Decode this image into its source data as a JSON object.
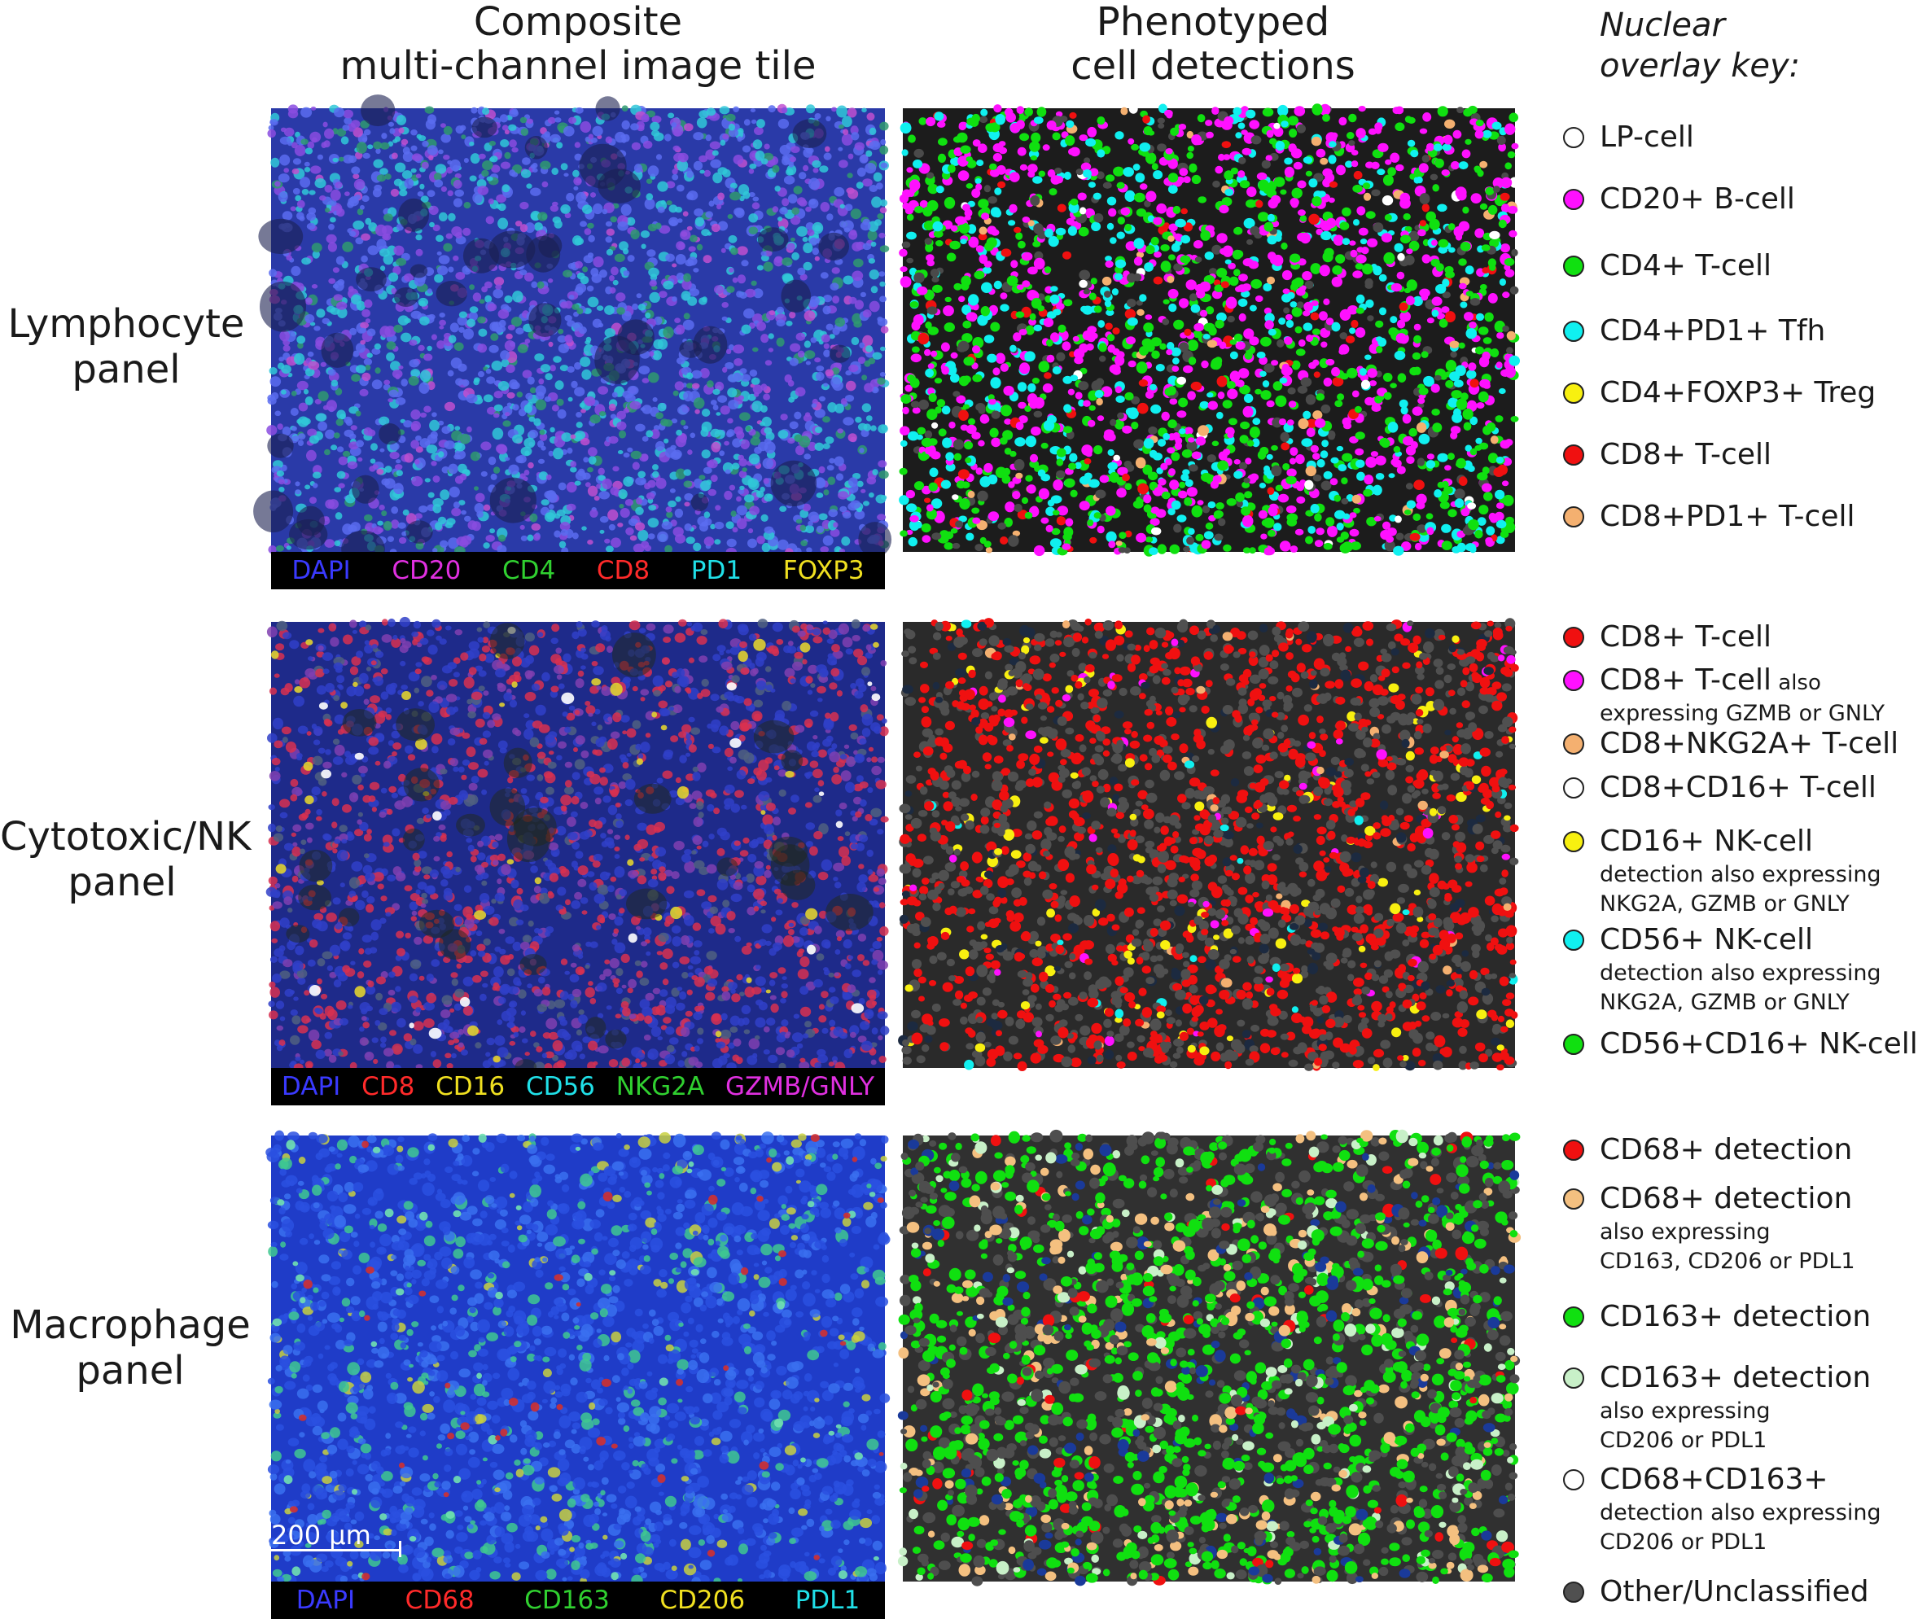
{
  "column_headers": {
    "composite": [
      "Composite",
      "multi-channel image tile"
    ],
    "phenotyped": [
      "Phenotyped",
      "cell detections"
    ],
    "key": [
      "Nuclear",
      "overlay key:"
    ]
  },
  "rows": [
    {
      "label": [
        "Lymphocyte",
        "panel"
      ],
      "channels": [
        {
          "name": "DAPI",
          "color": "#3a3aff"
        },
        {
          "name": "CD20",
          "color": "#e030e0"
        },
        {
          "name": "CD4",
          "color": "#30d030"
        },
        {
          "name": "CD8",
          "color": "#ff2a2a"
        },
        {
          "name": "PD1",
          "color": "#20e0e8"
        },
        {
          "name": "FOXP3",
          "color": "#f0e020"
        }
      ],
      "key": [
        {
          "label": "LP-cell",
          "color": "#ffffff"
        },
        {
          "label": "CD20+ B-cell",
          "color": "#ff10ff"
        },
        {
          "label": "CD4+ T-cell",
          "color": "#10e010"
        },
        {
          "label": "CD4+PD1+ Tfh",
          "color": "#10f0f0"
        },
        {
          "label": "CD4+FOXP3+ Treg",
          "color": "#f8f010"
        },
        {
          "label": "CD8+ T-cell",
          "color": "#f01010"
        },
        {
          "label": "CD8+PD1+ T-cell",
          "color": "#f4b070"
        }
      ]
    },
    {
      "label": [
        "Cytotoxic/NK",
        "panel"
      ],
      "channels": [
        {
          "name": "DAPI",
          "color": "#3a3aff"
        },
        {
          "name": "CD8",
          "color": "#ff2a2a"
        },
        {
          "name": "CD16",
          "color": "#f0e020"
        },
        {
          "name": "CD56",
          "color": "#20e0e8"
        },
        {
          "name": "NKG2A",
          "color": "#30d030"
        },
        {
          "name": "GZMB/GNLY",
          "color": "#e030e0"
        }
      ],
      "key": [
        {
          "label": "CD8+ T-cell",
          "small": "",
          "sub": [],
          "color": "#f01010"
        },
        {
          "label": "CD8+ T-cell",
          "small": "also",
          "sub": [
            "expressing GZMB or GNLY"
          ],
          "color": "#ff10ff"
        },
        {
          "label": "CD8+NKG2A+ T-cell",
          "small": "",
          "sub": [],
          "color": "#f4b070"
        },
        {
          "label": "CD8+CD16+ T-cell",
          "small": "",
          "sub": [],
          "color": "#ffffff"
        },
        {
          "label": "CD16+ NK-cell",
          "small": "",
          "sub": [
            "detection also expressing",
            "NKG2A, GZMB or GNLY"
          ],
          "color": "#f8f010"
        },
        {
          "label": "CD56+ NK-cell",
          "small": "",
          "sub": [
            "detection also expressing",
            "NKG2A, GZMB or GNLY"
          ],
          "color": "#10f0f0"
        },
        {
          "label": "CD56+CD16+ NK-cell",
          "small": "",
          "sub": [],
          "color": "#10e010"
        }
      ]
    },
    {
      "label": [
        "Macrophage",
        "panel"
      ],
      "channels": [
        {
          "name": "DAPI",
          "color": "#3a3aff"
        },
        {
          "name": "CD68",
          "color": "#ff2a2a"
        },
        {
          "name": "CD163",
          "color": "#30d030"
        },
        {
          "name": "CD206",
          "color": "#f0e020"
        },
        {
          "name": "PDL1",
          "color": "#20e0e8"
        }
      ],
      "key": [
        {
          "label": "CD68+ detection",
          "sub": [],
          "color": "#f01010"
        },
        {
          "label": "CD68+ detection",
          "sub": [
            "also expressing",
            "CD163, CD206 or PDL1"
          ],
          "color": "#f4c080"
        },
        {
          "label": "CD163+ detection",
          "sub": [],
          "color": "#10e010"
        },
        {
          "label": "CD163+ detection",
          "sub": [
            "also expressing",
            "CD206 or PDL1"
          ],
          "color": "#c8f0c8"
        },
        {
          "label": "CD68+CD163+",
          "sub": [
            "detection also expressing",
            "CD206 or PDL1"
          ],
          "color": "#ffffff"
        },
        {
          "label": "Other/Unclassified",
          "sub": [],
          "color": "#505050"
        }
      ]
    }
  ],
  "scale_bar": "200 µm"
}
